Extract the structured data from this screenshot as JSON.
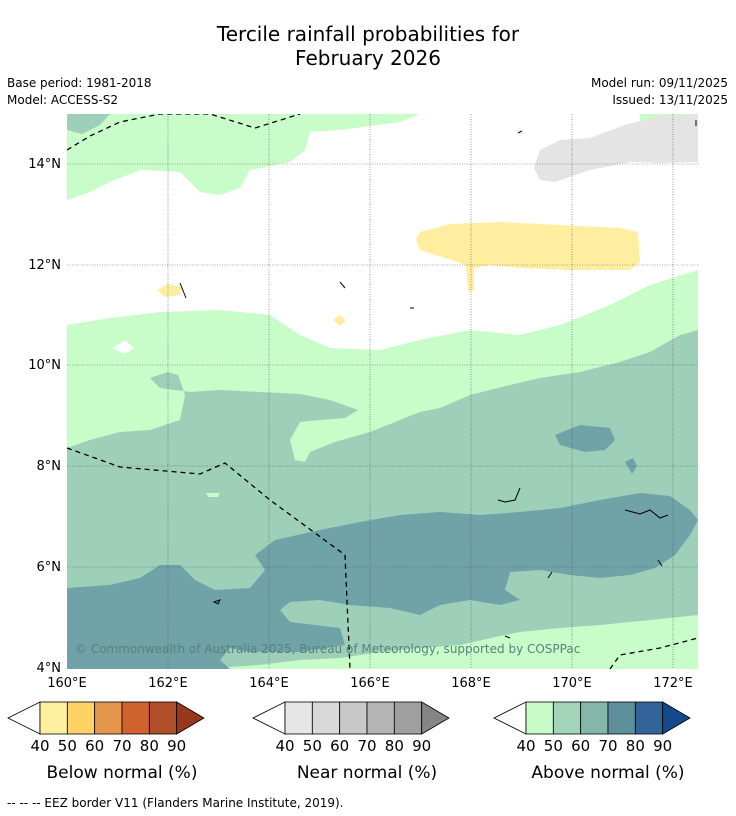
{
  "title_line1": "Tercile rainfall probabilities for",
  "title_line2": "February 2026",
  "meta": {
    "base_period": "Base period: 1981-2018",
    "model": "Model: ACCESS-S2",
    "model_run": "Model run: 09/11/2025",
    "issued": "Issued: 13/11/2025"
  },
  "map": {
    "lat_ticks": [
      "14°N",
      "12°N",
      "10°N",
      "8°N",
      "6°N",
      "4°N"
    ],
    "lon_ticks": [
      "160°E",
      "162°E",
      "164°E",
      "166°E",
      "168°E",
      "170°E",
      "172°E"
    ],
    "copyright": "© Commonwealth of Australia 2025, Bureau of Meteorology, supported by COSPPac"
  },
  "colorbars": [
    {
      "label": "Below normal (%)",
      "ticks": [
        "40",
        "50",
        "60",
        "70",
        "80",
        "90"
      ],
      "colors": [
        "#fff0a0",
        "#fed264",
        "#e3954b",
        "#d0622e",
        "#b04e2a",
        "#97371b"
      ]
    },
    {
      "label": "Near normal (%)",
      "ticks": [
        "40",
        "50",
        "60",
        "70",
        "80",
        "90"
      ],
      "colors": [
        "#e6e6e6",
        "#d9d9d9",
        "#c8c8c8",
        "#b4b4b4",
        "#9f9f9f",
        "#858585"
      ]
    },
    {
      "label": "Above normal (%)",
      "ticks": [
        "40",
        "50",
        "60",
        "70",
        "80",
        "90"
      ],
      "colors": [
        "#c9fbc9",
        "#a2d4b9",
        "#84b6aa",
        "#5d8f9d",
        "#336399",
        "#14498c"
      ]
    }
  ],
  "footer": "--  --  -- EEZ border V11 (Flanders Marine Institute, 2019).",
  "colors": {
    "above_40": "#c8fcc8",
    "above_50": "#9ecfb8",
    "above_60": "#6fa3a8",
    "below_40": "#ffeea0",
    "near_40": "#e4e4e4"
  }
}
